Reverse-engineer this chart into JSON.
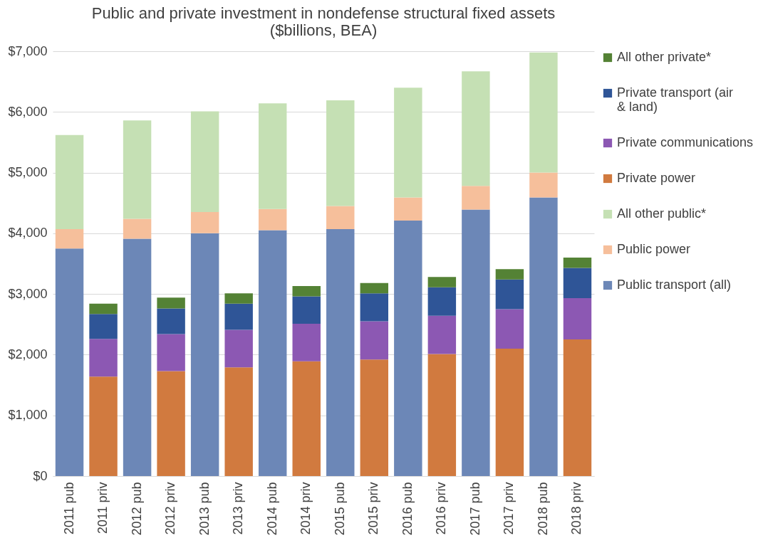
{
  "chart_data": {
    "type": "bar",
    "title": "Public and private investment in nondefense structural fixed assets",
    "subtitle": "($billions, BEA)",
    "stacked": true,
    "grid": "y",
    "legend": "right",
    "categories": [
      "2011 pub",
      "2011 priv",
      "2012 pub",
      "2012 priv",
      "2013 pub",
      "2013 priv",
      "2014 pub",
      "2014 priv",
      "2015 pub",
      "2015 priv",
      "2016 pub",
      "2016 priv",
      "2017 pub",
      "2017 priv",
      "2018 pub",
      "2018 priv"
    ],
    "ylim": [
      0,
      7000
    ],
    "yticks": [
      {
        "value": 0,
        "label": "$0"
      },
      {
        "value": 1000,
        "label": "$1,000"
      },
      {
        "value": 2000,
        "label": "$2,000"
      },
      {
        "value": 3000,
        "label": "$3,000"
      },
      {
        "value": 4000,
        "label": "$4,000"
      },
      {
        "value": 5000,
        "label": "$5,000"
      },
      {
        "value": 6000,
        "label": "$6,000"
      },
      {
        "value": 7000,
        "label": "$7,000"
      }
    ],
    "series": [
      {
        "name": "Public transport (all)",
        "color": "#6c87b7",
        "values": [
          3750,
          null,
          3910,
          null,
          4000,
          null,
          4050,
          null,
          4070,
          null,
          4210,
          null,
          4390,
          null,
          4590,
          null
        ]
      },
      {
        "name": "Public power",
        "color": "#f6bf9b",
        "values": [
          320,
          null,
          330,
          null,
          350,
          null,
          350,
          null,
          380,
          null,
          380,
          null,
          390,
          null,
          410,
          null
        ]
      },
      {
        "name": "All other public*",
        "color": "#c5e0b4",
        "values": [
          1550,
          null,
          1620,
          null,
          1660,
          null,
          1740,
          null,
          1740,
          null,
          1810,
          null,
          1890,
          null,
          1980,
          null
        ]
      },
      {
        "name": "Private power",
        "color": "#d17a3f",
        "values": [
          null,
          1640,
          null,
          1730,
          null,
          1790,
          null,
          1890,
          null,
          1920,
          null,
          2010,
          null,
          2100,
          null,
          2250
        ]
      },
      {
        "name": "Private communications",
        "color": "#8c58b3",
        "values": [
          null,
          620,
          null,
          610,
          null,
          620,
          null,
          620,
          null,
          630,
          null,
          630,
          null,
          650,
          null,
          680
        ]
      },
      {
        "name": "Private transport (air & land)",
        "color": "#2f5597",
        "values": [
          null,
          410,
          null,
          420,
          null,
          430,
          null,
          450,
          null,
          460,
          null,
          470,
          null,
          490,
          null,
          500
        ]
      },
      {
        "name": "All other private*",
        "color": "#548235",
        "values": [
          null,
          170,
          null,
          180,
          null,
          170,
          null,
          170,
          null,
          170,
          null,
          170,
          null,
          170,
          null,
          170
        ]
      }
    ]
  }
}
